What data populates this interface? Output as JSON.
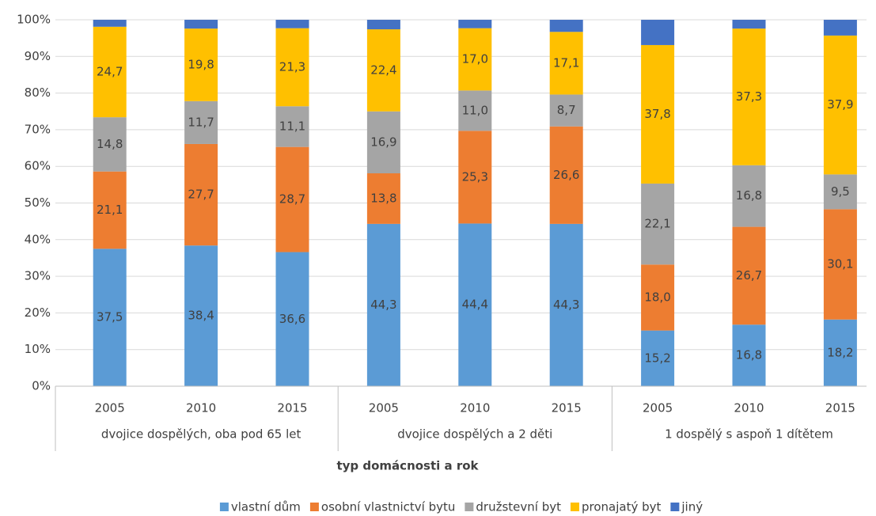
{
  "chart_data": {
    "type": "stacked_bar",
    "categories": [
      "2005",
      "2010",
      "2015",
      "2005",
      "2010",
      "2015",
      "2005",
      "2010",
      "2015"
    ],
    "groups": [
      {
        "name": "dvojice dospělých, oba pod 65 let",
        "size": 3
      },
      {
        "name": "dvojice dospělých a 2 děti",
        "size": 3
      },
      {
        "name": "1 dospělý s aspoň 1 dítětem",
        "size": 3
      }
    ],
    "xlabel": "typ domácnosti a rok",
    "series": [
      {
        "name": "vlastní dům",
        "color": "#5b9bd5",
        "values": [
          37.5,
          38.4,
          36.6,
          44.3,
          44.4,
          44.3,
          15.2,
          16.8,
          18.2
        ],
        "value_labels": [
          "37,5",
          "38,4",
          "36,6",
          "44,3",
          "44,4",
          "44,3",
          "15,2",
          "16,8",
          "18,2"
        ]
      },
      {
        "name": "osobní vlastnictví bytu",
        "color": "#ed7d31",
        "values": [
          21.1,
          27.7,
          28.7,
          13.8,
          25.3,
          26.6,
          18.0,
          26.7,
          30.1
        ],
        "value_labels": [
          "21,1",
          "27,7",
          "28,7",
          "13,8",
          "25,3",
          "26,6",
          "18,0",
          "26,7",
          "30,1"
        ]
      },
      {
        "name": "družstevní byt",
        "color": "#a5a5a5",
        "values": [
          14.8,
          11.7,
          11.1,
          16.9,
          11.0,
          8.7,
          22.1,
          16.8,
          9.5
        ],
        "value_labels": [
          "14,8",
          "11,7",
          "11,1",
          "16,9",
          "11,0",
          "8,7",
          "22,1",
          "16,8",
          "9,5"
        ]
      },
      {
        "name": "pronajatý byt",
        "color": "#ffc000",
        "values": [
          24.7,
          19.8,
          21.3,
          22.4,
          17.0,
          17.1,
          37.8,
          37.3,
          37.9
        ],
        "value_labels": [
          "24,7",
          "19,8",
          "21,3",
          "22,4",
          "17,0",
          "17,1",
          "37,8",
          "37,3",
          "37,9"
        ]
      },
      {
        "name": "jiný",
        "color": "#4472c4",
        "values": [
          1.9,
          2.4,
          2.3,
          2.6,
          2.3,
          3.3,
          6.9,
          2.4,
          4.3
        ]
      }
    ],
    "ylim": [
      0,
      100
    ],
    "yticks": [
      {
        "value": 0,
        "label": "0%"
      },
      {
        "value": 10,
        "label": "10%"
      },
      {
        "value": 20,
        "label": "20%"
      },
      {
        "value": 30,
        "label": "30%"
      },
      {
        "value": 40,
        "label": "40%"
      },
      {
        "value": 50,
        "label": "50%"
      },
      {
        "value": 60,
        "label": "60%"
      },
      {
        "value": 70,
        "label": "70%"
      },
      {
        "value": 80,
        "label": "80%"
      },
      {
        "value": 90,
        "label": "90%"
      },
      {
        "value": 100,
        "label": "100%"
      }
    ],
    "grid": true,
    "legend": "bottom"
  }
}
